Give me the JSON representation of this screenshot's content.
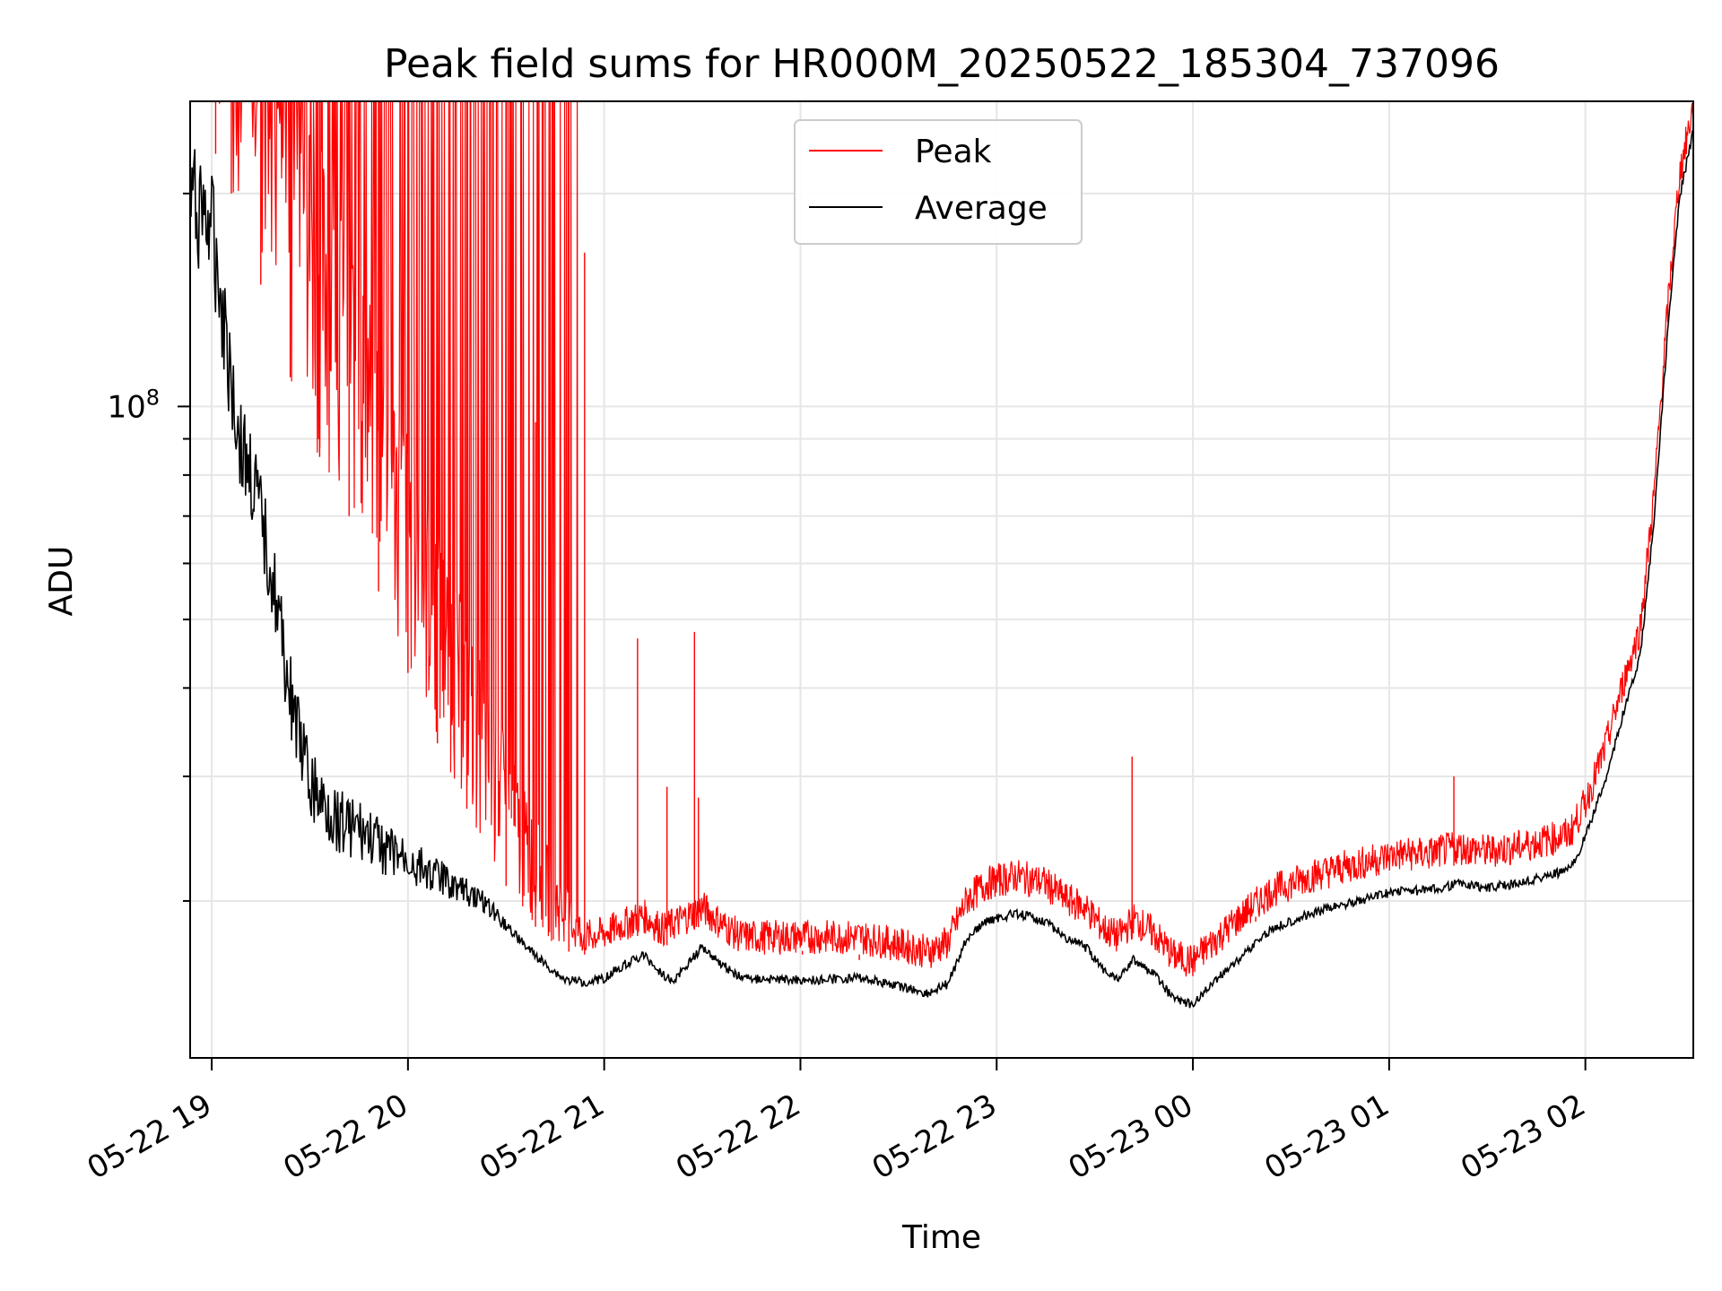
{
  "chart_data": {
    "type": "line",
    "title": "Peak field sums for HR000M_20250522_185304_737096",
    "xlabel": "Time",
    "ylabel": "ADU",
    "yscale": "log",
    "x_range_hours": [
      18.89,
      26.55
    ],
    "ylim": [
      12000000,
      270000000
    ],
    "grid": true,
    "legend_position": "top-center",
    "x_ticks": [
      {
        "label": "05-22 19",
        "hour": 19
      },
      {
        "label": "05-22 20",
        "hour": 20
      },
      {
        "label": "05-22 21",
        "hour": 21
      },
      {
        "label": "05-22 22",
        "hour": 22
      },
      {
        "label": "05-22 23",
        "hour": 23
      },
      {
        "label": "05-23 00",
        "hour": 24
      },
      {
        "label": "05-23 01",
        "hour": 25
      },
      {
        "label": "05-23 02",
        "hour": 26
      }
    ],
    "y_major_tick": {
      "base": "10",
      "exponent": "8",
      "value": 100000000
    },
    "series": [
      {
        "name": "Peak",
        "color": "#ff0000",
        "note_spikes": true,
        "spike_points": [
          [
            19.02,
            270000000
          ],
          [
            19.1,
            270000000
          ],
          [
            19.25,
            270000000
          ],
          [
            19.4,
            270000000
          ],
          [
            19.55,
            270000000
          ],
          [
            19.7,
            270000000
          ],
          [
            19.85,
            270000000
          ],
          [
            20.0,
            270000000
          ],
          [
            20.15,
            270000000
          ],
          [
            20.3,
            270000000
          ],
          [
            20.5,
            270000000
          ],
          [
            20.65,
            95000000
          ],
          [
            20.82,
            270000000
          ],
          [
            20.9,
            165000000
          ],
          [
            21.17,
            47000000
          ],
          [
            21.32,
            29000000
          ],
          [
            21.46,
            48000000
          ],
          [
            21.48,
            28000000
          ],
          [
            22.01,
            17000000
          ],
          [
            22.3,
            16500000
          ],
          [
            23.69,
            32000000
          ],
          [
            24.32,
            19000000
          ],
          [
            25.33,
            30000000
          ]
        ]
      },
      {
        "name": "Average",
        "color": "#000000"
      }
    ],
    "average_points": [
      [
        18.89,
        235000000
      ],
      [
        18.95,
        230000000
      ],
      [
        19.0,
        215000000
      ],
      [
        19.05,
        170000000
      ],
      [
        19.1,
        130000000
      ],
      [
        19.15,
        102000000
      ],
      [
        19.2,
        94000000
      ],
      [
        19.25,
        80000000
      ],
      [
        19.3,
        70000000
      ],
      [
        19.35,
        55000000
      ],
      [
        19.4,
        45000000
      ],
      [
        19.45,
        38000000
      ],
      [
        19.5,
        33000000
      ],
      [
        19.55,
        31000000
      ],
      [
        19.6,
        30000000
      ],
      [
        19.7,
        28500000
      ],
      [
        19.8,
        27000000
      ],
      [
        19.9,
        25500000
      ],
      [
        20.0,
        24500000
      ],
      [
        20.1,
        23500000
      ],
      [
        20.2,
        22500000
      ],
      [
        20.3,
        21500000
      ],
      [
        20.4,
        20500000
      ],
      [
        20.5,
        19000000
      ],
      [
        20.6,
        17500000
      ],
      [
        20.7,
        16500000
      ],
      [
        20.8,
        15700000
      ],
      [
        20.9,
        15600000
      ],
      [
        21.0,
        15800000
      ],
      [
        21.1,
        16500000
      ],
      [
        21.2,
        17000000
      ],
      [
        21.3,
        16000000
      ],
      [
        21.35,
        15600000
      ],
      [
        21.5,
        17500000
      ],
      [
        21.6,
        16500000
      ],
      [
        21.7,
        15800000
      ],
      [
        21.9,
        15700000
      ],
      [
        22.1,
        15700000
      ],
      [
        22.3,
        15800000
      ],
      [
        22.5,
        15400000
      ],
      [
        22.65,
        15000000
      ],
      [
        22.75,
        15500000
      ],
      [
        22.85,
        18000000
      ],
      [
        22.95,
        19000000
      ],
      [
        23.1,
        19500000
      ],
      [
        23.25,
        19000000
      ],
      [
        23.35,
        18000000
      ],
      [
        23.45,
        17500000
      ],
      [
        23.55,
        16200000
      ],
      [
        23.62,
        15800000
      ],
      [
        23.7,
        16800000
      ],
      [
        23.8,
        16000000
      ],
      [
        23.9,
        14800000
      ],
      [
        24.0,
        14500000
      ],
      [
        24.1,
        15500000
      ],
      [
        24.2,
        16500000
      ],
      [
        24.3,
        17500000
      ],
      [
        24.4,
        18500000
      ],
      [
        24.5,
        19000000
      ],
      [
        24.6,
        19500000
      ],
      [
        24.75,
        20000000
      ],
      [
        24.9,
        20500000
      ],
      [
        25.05,
        21000000
      ],
      [
        25.2,
        21000000
      ],
      [
        25.35,
        21500000
      ],
      [
        25.5,
        21200000
      ],
      [
        25.65,
        21500000
      ],
      [
        25.8,
        22000000
      ],
      [
        25.92,
        22500000
      ],
      [
        26.0,
        25000000
      ],
      [
        26.1,
        30000000
      ],
      [
        26.2,
        38000000
      ],
      [
        26.28,
        45000000
      ],
      [
        26.35,
        70000000
      ],
      [
        26.42,
        130000000
      ],
      [
        26.48,
        200000000
      ],
      [
        26.55,
        250000000
      ]
    ],
    "peak_envelope_points": [
      [
        18.89,
        240000000
      ],
      [
        18.95,
        240000000
      ],
      [
        19.0,
        235000000
      ],
      [
        19.1,
        200000000
      ],
      [
        19.2,
        170000000
      ],
      [
        19.3,
        130000000
      ],
      [
        19.4,
        110000000
      ],
      [
        19.5,
        90000000
      ],
      [
        19.6,
        80000000
      ],
      [
        19.7,
        70000000
      ],
      [
        19.8,
        60000000
      ],
      [
        19.9,
        50000000
      ],
      [
        20.0,
        42000000
      ],
      [
        20.1,
        36000000
      ],
      [
        20.2,
        31000000
      ],
      [
        20.3,
        27000000
      ],
      [
        20.4,
        23500000
      ],
      [
        20.5,
        21000000
      ],
      [
        20.6,
        19000000
      ],
      [
        20.7,
        17800000
      ],
      [
        20.8,
        17000000
      ],
      [
        20.9,
        16800000
      ],
      [
        21.0,
        17000000
      ],
      [
        21.1,
        17500000
      ],
      [
        21.2,
        18000000
      ],
      [
        21.3,
        17200000
      ],
      [
        21.4,
        17800000
      ],
      [
        21.5,
        18500000
      ],
      [
        21.6,
        17500000
      ],
      [
        21.7,
        16800000
      ],
      [
        21.9,
        16800000
      ],
      [
        22.1,
        16800000
      ],
      [
        22.3,
        16800000
      ],
      [
        22.5,
        16400000
      ],
      [
        22.65,
        16000000
      ],
      [
        22.75,
        16500000
      ],
      [
        22.85,
        19000000
      ],
      [
        22.95,
        20000000
      ],
      [
        23.1,
        20500000
      ],
      [
        23.25,
        20000000
      ],
      [
        23.35,
        19000000
      ],
      [
        23.45,
        18500000
      ],
      [
        23.55,
        17200000
      ],
      [
        23.62,
        16800000
      ],
      [
        23.7,
        17800000
      ],
      [
        23.8,
        17000000
      ],
      [
        23.9,
        15800000
      ],
      [
        24.0,
        15500000
      ],
      [
        24.1,
        16500000
      ],
      [
        24.2,
        17500000
      ],
      [
        24.3,
        18500000
      ],
      [
        24.4,
        19500000
      ],
      [
        24.5,
        20000000
      ],
      [
        24.6,
        20500000
      ],
      [
        24.75,
        21000000
      ],
      [
        24.9,
        21500000
      ],
      [
        25.05,
        22000000
      ],
      [
        25.2,
        22000000
      ],
      [
        25.35,
        22500000
      ],
      [
        25.5,
        22200000
      ],
      [
        25.65,
        22500000
      ],
      [
        25.8,
        23000000
      ],
      [
        25.92,
        23500000
      ],
      [
        26.0,
        26000000
      ],
      [
        26.1,
        31000000
      ],
      [
        26.2,
        39000000
      ],
      [
        26.28,
        46000000
      ],
      [
        26.35,
        71000000
      ],
      [
        26.42,
        131000000
      ],
      [
        26.48,
        201000000
      ],
      [
        26.55,
        251000000
      ]
    ]
  }
}
